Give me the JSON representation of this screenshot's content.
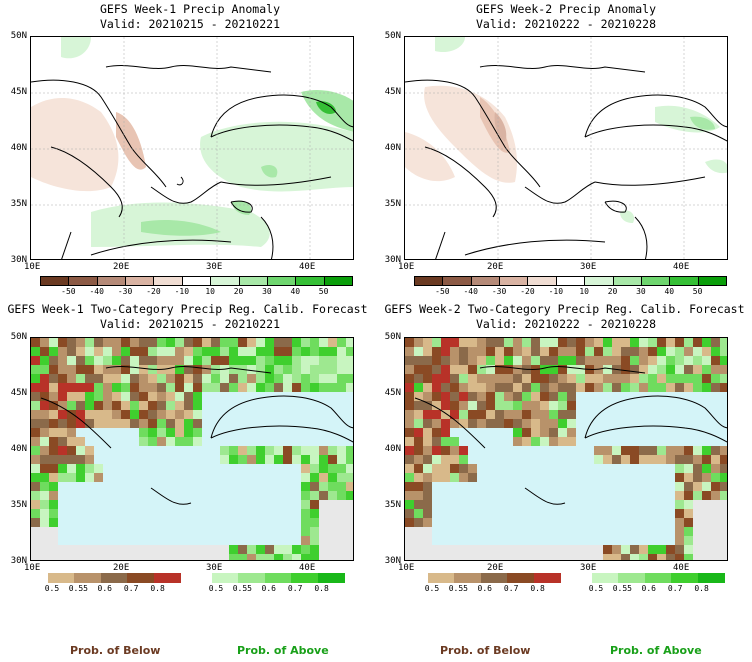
{
  "panels": {
    "p1": {
      "title": "GEFS Week-1 Precip Anomaly",
      "valid": "Valid: 20210215 - 20210221"
    },
    "p2": {
      "title": "GEFS Week-2 Precip Anomaly",
      "valid": "Valid: 20210222 - 20210228"
    },
    "p3": {
      "title": "GEFS Week-1 Two-Category Precip Reg. Calib. Forecast",
      "valid": "Valid: 20210215 - 20210221"
    },
    "p4": {
      "title": "GEFS Week-2 Two-Category Precip Reg. Calib. Forecast",
      "valid": "Valid: 20210222 - 20210228"
    }
  },
  "axes": {
    "lat_labels": [
      "50N",
      "45N",
      "40N",
      "35N",
      "30N"
    ],
    "lon_labels": [
      "10E",
      "20E",
      "30E",
      "40E"
    ]
  },
  "anomaly_scale": {
    "ticks": [
      "-50",
      "-40",
      "-30",
      "-20",
      "-10",
      "10",
      "20",
      "30",
      "40",
      "50"
    ],
    "colors": [
      "#6b3a22",
      "#8c5a45",
      "#b58a78",
      "#d9b3a3",
      "#f0ddd3",
      "#ffffff",
      "#d7f5d7",
      "#a8e8a8",
      "#6fd66f",
      "#35bf35",
      "#0a9e0a"
    ]
  },
  "prob_scale": {
    "below_ticks": [
      "0.5",
      "0.55",
      "0.6",
      "0.7",
      "0.8"
    ],
    "above_ticks": [
      "0.5",
      "0.55",
      "0.6",
      "0.7",
      "0.8"
    ],
    "below_colors": [
      "#d8b98a",
      "#b8926a",
      "#8b6a4a",
      "#8a4a24",
      "#b83228"
    ],
    "above_colors": [
      "#c8f5c0",
      "#9ee890",
      "#6fdc5e",
      "#3fcf2e",
      "#19b819"
    ]
  },
  "labels": {
    "below": "Prob. of Below",
    "above": "Prob. of Above"
  },
  "colors": {
    "sea": "#d4f4f8",
    "below_text": "#6b3a22",
    "above_text": "#19a019"
  }
}
